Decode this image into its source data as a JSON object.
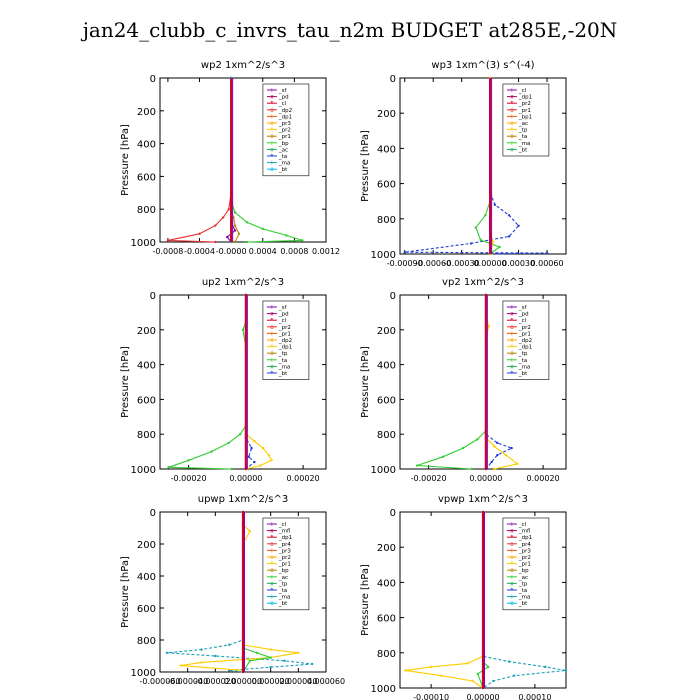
{
  "page_title": "jan24_clubb_c_invrs_tau_n2m  BUDGET at285E,-20N",
  "chart_data": [
    {
      "type": "line",
      "title": "wp2   1xm^2/s^3",
      "ylabel": "Pressure [hPa]",
      "ylim": [
        1000,
        0
      ],
      "xlim": [
        -0.0009,
        0.0012
      ],
      "xticks": [
        "-0.0008",
        "-0.0004",
        "-0.0000",
        "0.0004",
        "0.0008",
        "0.0012"
      ],
      "xtick_values": [
        -0.0008,
        -0.0004,
        0.0,
        0.0004,
        0.0008,
        0.0012
      ],
      "yticks": [
        0,
        200,
        400,
        600,
        800,
        1000
      ],
      "legend": [
        "_sf",
        "_pd",
        "_cl",
        "_dp2",
        "_dp1",
        "_pr3",
        "_pr2",
        "_pr1",
        "_bp",
        "_ac",
        "_ta",
        "_ma",
        "_bt"
      ],
      "series": [
        {
          "name": "_dp1",
          "color": "#e83030",
          "points": [
            [
              0,
              0
            ],
            [
              0,
              700
            ],
            [
              -3e-05,
              800
            ],
            [
              -0.0001,
              850
            ],
            [
              -0.0002,
              900
            ],
            [
              -0.0004,
              950
            ],
            [
              -0.0008,
              990
            ],
            [
              -0.0002,
              1000
            ]
          ]
        },
        {
          "name": "_ac",
          "color": "#33cc33",
          "points": [
            [
              0,
              0
            ],
            [
              0,
              750
            ],
            [
              5e-05,
              820
            ],
            [
              0.0002,
              880
            ],
            [
              0.0004,
              920
            ],
            [
              0.0007,
              960
            ],
            [
              0.0009,
              990
            ],
            [
              0.0002,
              1000
            ]
          ]
        },
        {
          "name": "_pr1",
          "color": "#b8860b",
          "points": [
            [
              0,
              0
            ],
            [
              0,
              800
            ],
            [
              3e-05,
              850
            ],
            [
              5e-05,
              900
            ],
            [
              0.0001,
              950
            ],
            [
              5e-05,
              1000
            ]
          ]
        },
        {
          "name": "_pd",
          "color": "#8800aa",
          "points": [
            [
              0,
              0
            ],
            [
              0,
              880
            ],
            [
              5e-05,
              930
            ],
            [
              -5e-05,
              970
            ],
            [
              0,
              1000
            ]
          ]
        },
        {
          "name": "_bt",
          "color": "#00bbdd",
          "points": [
            [
              0,
              0
            ],
            [
              0,
              1000
            ]
          ]
        }
      ]
    },
    {
      "type": "line",
      "title": "wp3   1xm^(3) s^(-4)",
      "ylabel": "Pressure [hPa]",
      "ylim": [
        1000,
        0
      ],
      "xlim": [
        -0.00095,
        0.0008
      ],
      "xticks": [
        "-0.00090",
        "-0.00060",
        "-0.00030",
        "0.00000",
        "0.00030",
        "0.00060"
      ],
      "xtick_values": [
        -0.0009,
        -0.0006,
        -0.0003,
        0.0,
        0.0003,
        0.0006
      ],
      "yticks": [
        0,
        200,
        400,
        600,
        800,
        1000
      ],
      "legend": [
        "_cl",
        "_dp1",
        "_pr2",
        "_pr1",
        "_bp1",
        "_ac",
        "_tp",
        "_ta",
        "_ma",
        "_bt"
      ],
      "series": [
        {
          "name": "_tp",
          "color": "#1f3fd6",
          "points": [
            [
              0,
              0
            ],
            [
              0,
              650
            ],
            [
              5e-05,
              720
            ],
            [
              0.0002,
              780
            ],
            [
              0.0003,
              840
            ],
            [
              0.0002,
              900
            ],
            [
              -0.0002,
              940
            ],
            [
              -0.0009,
              990
            ],
            [
              0.0006,
              995
            ],
            [
              0,
              1000
            ]
          ]
        },
        {
          "name": "_ac",
          "color": "#33cc33",
          "points": [
            [
              0,
              0
            ],
            [
              0,
              700
            ],
            [
              -5e-05,
              780
            ],
            [
              -0.00015,
              850
            ],
            [
              -0.0001,
              920
            ],
            [
              0.0001,
              960
            ],
            [
              0,
              1000
            ]
          ]
        },
        {
          "name": "_dp1",
          "color": "#e83030",
          "points": [
            [
              0,
              0
            ],
            [
              0,
              1000
            ]
          ]
        },
        {
          "name": "_pr2",
          "color": "#ffcc00",
          "points": [
            [
              0,
              0
            ],
            [
              0,
              880
            ],
            [
              3e-05,
              930
            ],
            [
              0,
              1000
            ]
          ]
        }
      ]
    },
    {
      "type": "line",
      "title": "up2   1xm^2/s^3",
      "ylabel": "Pressure [hPa]",
      "ylim": [
        1000,
        0
      ],
      "xlim": [
        -0.0003,
        0.00028
      ],
      "xticks": [
        "-0.00020",
        "0.00000",
        "0.00020"
      ],
      "xtick_values": [
        -0.0002,
        0.0,
        0.0002
      ],
      "yticks": [
        0,
        200,
        400,
        600,
        800,
        1000
      ],
      "legend": [
        "_sf",
        "_pd",
        "_cl",
        "_pr2",
        "_pr1",
        "_dp2",
        "_dp1",
        "_tp",
        "_ta",
        "_ma",
        "_bt"
      ],
      "series": [
        {
          "name": "_dp1",
          "color": "#33cc33",
          "points": [
            [
              0,
              0
            ],
            [
              0,
              150
            ],
            [
              -1e-05,
              200
            ],
            [
              0,
              300
            ],
            [
              0,
              750
            ],
            [
              -2e-05,
              800
            ],
            [
              -6e-05,
              850
            ],
            [
              -0.00012,
              900
            ],
            [
              -0.0002,
              950
            ],
            [
              -0.00027,
              990
            ],
            [
              -5e-05,
              1000
            ]
          ]
        },
        {
          "name": "_pr1",
          "color": "#ffcc00",
          "points": [
            [
              0,
              0
            ],
            [
              0,
              800
            ],
            [
              3e-05,
              840
            ],
            [
              6e-05,
              880
            ],
            [
              8e-05,
              920
            ],
            [
              9e-05,
              950
            ],
            [
              5e-05,
              980
            ],
            [
              0,
              1000
            ]
          ]
        },
        {
          "name": "_tp",
          "color": "#1f3fd6",
          "points": [
            [
              0,
              0
            ],
            [
              0,
              820
            ],
            [
              2e-05,
              880
            ],
            [
              1e-05,
              930
            ],
            [
              3e-05,
              960
            ],
            [
              0,
              1000
            ]
          ]
        },
        {
          "name": "_pd",
          "color": "#cc0033",
          "points": [
            [
              0,
              0
            ],
            [
              0,
              1000
            ]
          ]
        }
      ]
    },
    {
      "type": "line",
      "title": "vp2   1xm^2/s^3",
      "ylabel": "Pressure [hPa]",
      "ylim": [
        1000,
        0
      ],
      "xlim": [
        -0.0003,
        0.00028
      ],
      "xticks": [
        "-0.00020",
        "0.00000",
        "0.00020"
      ],
      "xtick_values": [
        -0.0002,
        0.0,
        0.0002
      ],
      "yticks": [
        0,
        200,
        400,
        600,
        800,
        1000
      ],
      "legend": [
        "_sf",
        "_pd",
        "_cl",
        "_pr2",
        "_pr1",
        "_dp2",
        "_dp1",
        "_tp",
        "_ta",
        "_ma",
        "_bt"
      ],
      "series": [
        {
          "name": "_dp1",
          "color": "#33cc33",
          "points": [
            [
              0,
              0
            ],
            [
              0,
              780
            ],
            [
              -3e-05,
              830
            ],
            [
              -8e-05,
              880
            ],
            [
              -0.00015,
              930
            ],
            [
              -0.00024,
              980
            ],
            [
              -5e-05,
              1000
            ]
          ]
        },
        {
          "name": "_pr1",
          "color": "#ffcc00",
          "points": [
            [
              0,
              0
            ],
            [
              0,
              120
            ],
            [
              1e-05,
              180
            ],
            [
              0,
              250
            ],
            [
              0,
              820
            ],
            [
              3e-05,
              870
            ],
            [
              7e-05,
              920
            ],
            [
              0.00011,
              970
            ],
            [
              3e-05,
              1000
            ]
          ]
        },
        {
          "name": "_tp",
          "color": "#1f3fd6",
          "points": [
            [
              0,
              0
            ],
            [
              0,
              800
            ],
            [
              4e-05,
              850
            ],
            [
              9e-05,
              880
            ],
            [
              4e-05,
              920
            ],
            [
              2e-05,
              960
            ],
            [
              0,
              1000
            ]
          ]
        },
        {
          "name": "_pd",
          "color": "#cc0033",
          "points": [
            [
              0,
              0
            ],
            [
              0,
              1000
            ]
          ]
        }
      ]
    },
    {
      "type": "line",
      "title": "upwp   1xm^2/s^3",
      "ylabel": "Pressure [hPa]",
      "ylim": [
        1000,
        0
      ],
      "xlim": [
        -6e-05,
        6e-05
      ],
      "xticks": [
        "-0.000060",
        "-0.000040",
        "-0.000020",
        "0.000000",
        "0.000020",
        "0.000040",
        "0.000060"
      ],
      "xtick_values": [
        -6e-05,
        -4e-05,
        -2e-05,
        0.0,
        2e-05,
        4e-05,
        6e-05
      ],
      "yticks": [
        0,
        200,
        400,
        600,
        800,
        1000
      ],
      "legend": [
        "_cl",
        "_mfl",
        "_dp1",
        "_pr4",
        "_pr3",
        "_pr2",
        "_pr1",
        "_bp",
        "_ac",
        "_tp",
        "_ta",
        "_ma",
        "_bt"
      ],
      "series": [
        {
          "name": "_tp",
          "color": "#1a9fb5",
          "points": [
            [
              0,
              0
            ],
            [
              0,
              800
            ],
            [
              -1e-05,
              830
            ],
            [
              -3e-05,
              860
            ],
            [
              -5.5e-05,
              880
            ],
            [
              -2e-05,
              900
            ],
            [
              3e-05,
              930
            ],
            [
              5e-05,
              950
            ],
            [
              2e-05,
              970
            ],
            [
              -1e-05,
              990
            ],
            [
              0,
              1000
            ]
          ]
        },
        {
          "name": "_pr1",
          "color": "#ffcc00",
          "points": [
            [
              0,
              0
            ],
            [
              0,
              80
            ],
            [
              5e-06,
              120
            ],
            [
              0,
              200
            ],
            [
              0,
              830
            ],
            [
              2e-05,
              860
            ],
            [
              4e-05,
              880
            ],
            [
              2e-05,
              910
            ],
            [
              -3e-05,
              940
            ],
            [
              -4.5e-05,
              960
            ],
            [
              0,
              990
            ]
          ]
        },
        {
          "name": "_ac",
          "color": "#33cc33",
          "points": [
            [
              0,
              0
            ],
            [
              0,
              850
            ],
            [
              1e-05,
              880
            ],
            [
              2e-05,
              910
            ],
            [
              5e-06,
              930
            ],
            [
              0,
              1000
            ]
          ]
        },
        {
          "name": "_dp1",
          "color": "#cc0033",
          "points": [
            [
              0,
              0
            ],
            [
              0,
              1000
            ]
          ]
        }
      ]
    },
    {
      "type": "line",
      "title": "vpwp   1xm^2/s^3",
      "ylabel": "Pressure [hPa]",
      "ylim": [
        1000,
        0
      ],
      "xlim": [
        -0.00016,
        0.00016
      ],
      "xticks": [
        "-0.00010",
        "0.00000",
        "0.00010"
      ],
      "xtick_values": [
        -0.0001,
        0.0,
        0.0001
      ],
      "yticks": [
        0,
        200,
        400,
        600,
        800,
        1000
      ],
      "legend": [
        "_cl",
        "_mfl",
        "_dp1",
        "_pr4",
        "_pr3",
        "_pr2",
        "_pr1",
        "_bp",
        "_ac",
        "_tp",
        "_ta",
        "_ma",
        "_bt"
      ],
      "series": [
        {
          "name": "_tp",
          "color": "#1a9fb5",
          "points": [
            [
              0,
              0
            ],
            [
              0,
              820
            ],
            [
              5e-05,
              850
            ],
            [
              0.00012,
              880
            ],
            [
              0.00016,
              900
            ],
            [
              6e-05,
              930
            ],
            [
              2e-05,
              960
            ],
            [
              0,
              1000
            ]
          ]
        },
        {
          "name": "_pr1",
          "color": "#ffcc00",
          "points": [
            [
              0,
              0
            ],
            [
              0,
              820
            ],
            [
              -3e-05,
              860
            ],
            [
              -0.0001,
              880
            ],
            [
              -0.00015,
              900
            ],
            [
              -8e-05,
              930
            ],
            [
              -2e-05,
              960
            ],
            [
              0,
              1000
            ]
          ]
        },
        {
          "name": "_ac",
          "color": "#33cc33",
          "points": [
            [
              0,
              0
            ],
            [
              0,
              850
            ],
            [
              1e-05,
              880
            ],
            [
              -1e-05,
              920
            ],
            [
              0,
              1000
            ]
          ]
        },
        {
          "name": "_dp1",
          "color": "#cc0033",
          "points": [
            [
              0,
              0
            ],
            [
              0,
              1000
            ]
          ]
        }
      ]
    }
  ]
}
